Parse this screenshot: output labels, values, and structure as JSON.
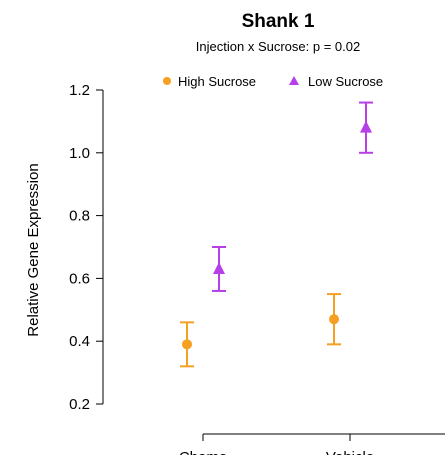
{
  "chart_data": {
    "type": "scatter",
    "title": "Shank 1",
    "subtitle": "Injection x Sucrose: p = 0.02",
    "xlabel": "",
    "ylabel": "Relative Gene Expression",
    "categories": [
      "Chemo",
      "Vehicle"
    ],
    "ylim": [
      0.2,
      1.2
    ],
    "yticks": [
      "0.2",
      "0.4",
      "0.6",
      "0.8",
      "1.0",
      "1.2"
    ],
    "legend_position": "top",
    "grid": false,
    "series": [
      {
        "name": "High Sucrose",
        "marker": "circle",
        "color": "#F5A020",
        "values": [
          0.39,
          0.47
        ],
        "error_low": [
          0.32,
          0.39
        ],
        "error_high": [
          0.46,
          0.55
        ]
      },
      {
        "name": "Low Sucrose",
        "marker": "triangle",
        "color": "#B63FE6",
        "values": [
          0.63,
          1.08
        ],
        "error_low": [
          0.56,
          1.0
        ],
        "error_high": [
          0.7,
          1.16
        ]
      }
    ]
  }
}
